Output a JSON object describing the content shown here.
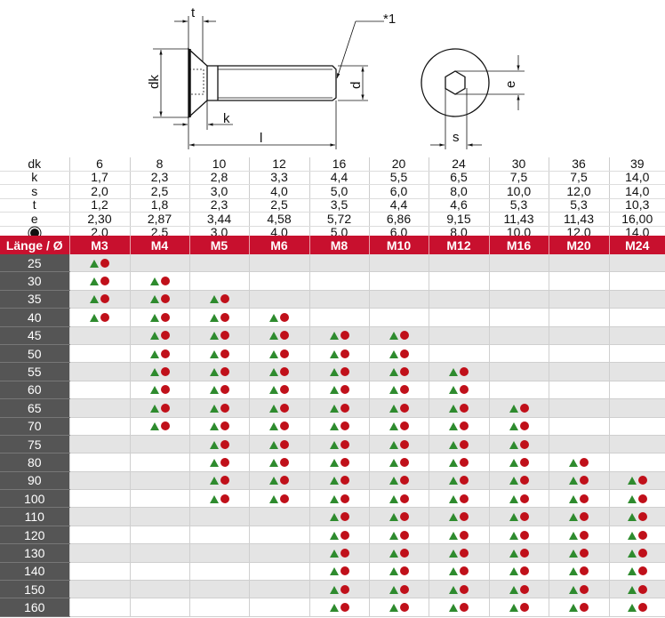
{
  "drawing": {
    "labels": {
      "t": "t",
      "dk": "dk",
      "k": "k",
      "l": "l",
      "d": "d",
      "note": "*1",
      "e": "e",
      "s": "s"
    }
  },
  "spec": {
    "sizes_header": [
      "6",
      "8",
      "10",
      "12",
      "16",
      "20",
      "24",
      "30",
      "36",
      "39"
    ],
    "rows": [
      {
        "label": "dk",
        "values": [
          "6",
          "8",
          "10",
          "12",
          "16",
          "20",
          "24",
          "30",
          "36",
          "39"
        ]
      },
      {
        "label": "k",
        "values": [
          "1,7",
          "2,3",
          "2,8",
          "3,3",
          "4,4",
          "5,5",
          "6,5",
          "7,5",
          "7,5",
          "14,0"
        ]
      },
      {
        "label": "s",
        "values": [
          "2,0",
          "2,5",
          "3,0",
          "4,0",
          "5,0",
          "6,0",
          "8,0",
          "10,0",
          "12,0",
          "14,0"
        ]
      },
      {
        "label": "t",
        "values": [
          "1,2",
          "1,8",
          "2,3",
          "2,5",
          "3,5",
          "4,4",
          "4,6",
          "5,3",
          "5,3",
          "10,3"
        ]
      },
      {
        "label": "e",
        "values": [
          "2,30",
          "2,87",
          "3,44",
          "4,58",
          "5,72",
          "6,86",
          "9,15",
          "11,43",
          "11,43",
          "16,00"
        ]
      },
      {
        "label": "",
        "icon": "drive-socket-icon",
        "values": [
          "2,0",
          "2,5",
          "3,0",
          "4,0",
          "5,0",
          "6,0",
          "8,0",
          "10,0",
          "12,0",
          "14,0"
        ]
      }
    ]
  },
  "grid": {
    "corner_label": "Länge / Ø",
    "threads": [
      "M3",
      "M4",
      "M5",
      "M6",
      "M8",
      "M10",
      "M12",
      "M16",
      "M20",
      "M24"
    ],
    "marker_icons": [
      "green-triangle-icon",
      "red-circle-icon"
    ],
    "colors": {
      "header": "#c8102e",
      "triangle": "#2e8b2e",
      "circle": "#c0101a",
      "length_column": "#555555",
      "alt_row": "#e4e4e4"
    },
    "rows": [
      {
        "length": "25",
        "available": [
          "M3"
        ]
      },
      {
        "length": "30",
        "available": [
          "M3",
          "M4"
        ]
      },
      {
        "length": "35",
        "available": [
          "M3",
          "M4",
          "M5"
        ]
      },
      {
        "length": "40",
        "available": [
          "M3",
          "M4",
          "M5",
          "M6"
        ]
      },
      {
        "length": "45",
        "available": [
          "M4",
          "M5",
          "M6",
          "M8",
          "M10"
        ]
      },
      {
        "length": "50",
        "available": [
          "M4",
          "M5",
          "M6",
          "M8",
          "M10"
        ]
      },
      {
        "length": "55",
        "available": [
          "M4",
          "M5",
          "M6",
          "M8",
          "M10",
          "M12"
        ]
      },
      {
        "length": "60",
        "available": [
          "M4",
          "M5",
          "M6",
          "M8",
          "M10",
          "M12"
        ]
      },
      {
        "length": "65",
        "available": [
          "M4",
          "M5",
          "M6",
          "M8",
          "M10",
          "M12",
          "M16"
        ]
      },
      {
        "length": "70",
        "available": [
          "M4",
          "M5",
          "M6",
          "M8",
          "M10",
          "M12",
          "M16"
        ]
      },
      {
        "length": "75",
        "available": [
          "M5",
          "M6",
          "M8",
          "M10",
          "M12",
          "M16"
        ]
      },
      {
        "length": "80",
        "available": [
          "M5",
          "M6",
          "M8",
          "M10",
          "M12",
          "M16",
          "M20"
        ]
      },
      {
        "length": "90",
        "available": [
          "M5",
          "M6",
          "M8",
          "M10",
          "M12",
          "M16",
          "M20",
          "M24"
        ]
      },
      {
        "length": "100",
        "available": [
          "M5",
          "M6",
          "M8",
          "M10",
          "M12",
          "M16",
          "M20",
          "M24"
        ]
      },
      {
        "length": "110",
        "available": [
          "M8",
          "M10",
          "M12",
          "M16",
          "M20",
          "M24"
        ]
      },
      {
        "length": "120",
        "available": [
          "M8",
          "M10",
          "M12",
          "M16",
          "M20",
          "M24"
        ]
      },
      {
        "length": "130",
        "available": [
          "M8",
          "M10",
          "M12",
          "M16",
          "M20",
          "M24"
        ]
      },
      {
        "length": "140",
        "available": [
          "M8",
          "M10",
          "M12",
          "M16",
          "M20",
          "M24"
        ]
      },
      {
        "length": "150",
        "available": [
          "M8",
          "M10",
          "M12",
          "M16",
          "M20",
          "M24"
        ]
      },
      {
        "length": "160",
        "available": [
          "M8",
          "M10",
          "M12",
          "M16",
          "M20",
          "M24"
        ]
      }
    ]
  }
}
